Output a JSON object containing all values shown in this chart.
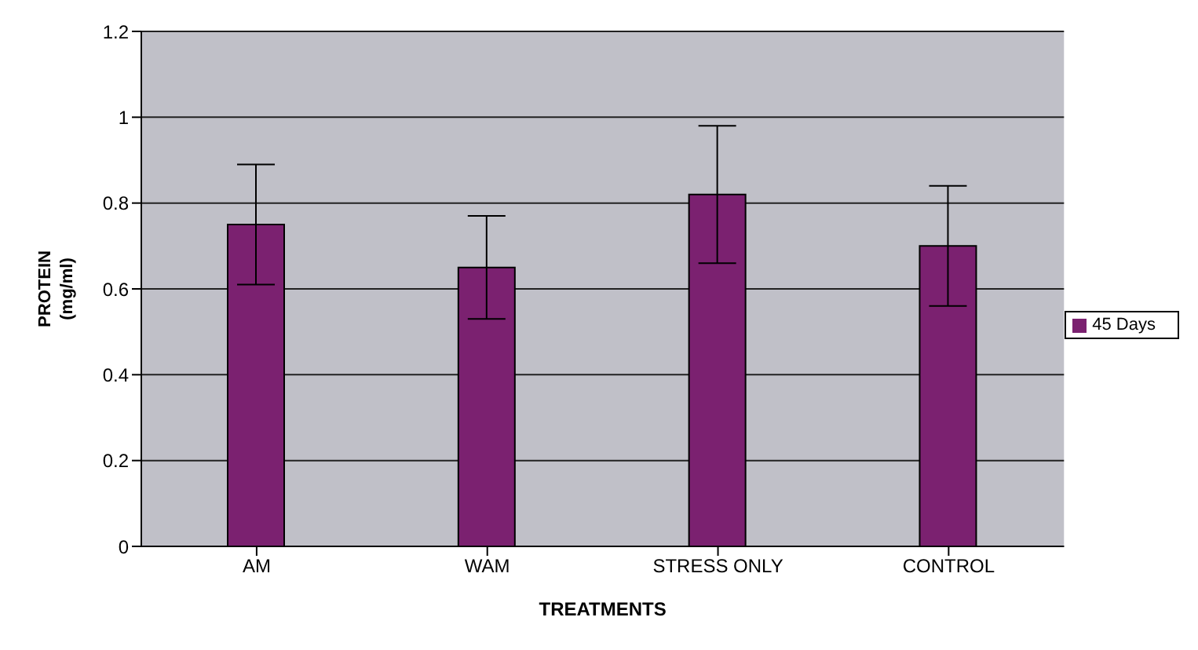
{
  "chart_data": {
    "type": "bar",
    "xlabel": "TREATMENTS",
    "ylabel": "PROTEIN\n(mg/ml)",
    "categories": [
      "AM",
      "WAM",
      "STRESS ONLY",
      "CONTROL"
    ],
    "series": [
      {
        "name": "45 Days",
        "color": "#7b2170",
        "values": [
          0.75,
          0.65,
          0.82,
          0.7
        ],
        "errors": [
          0.14,
          0.12,
          0.16,
          0.14
        ]
      }
    ],
    "ylim": [
      0,
      1.2
    ],
    "yticks": [
      0,
      0.2,
      0.4,
      0.6,
      0.8,
      1,
      1.2
    ],
    "grid": "y",
    "legend": "right"
  }
}
